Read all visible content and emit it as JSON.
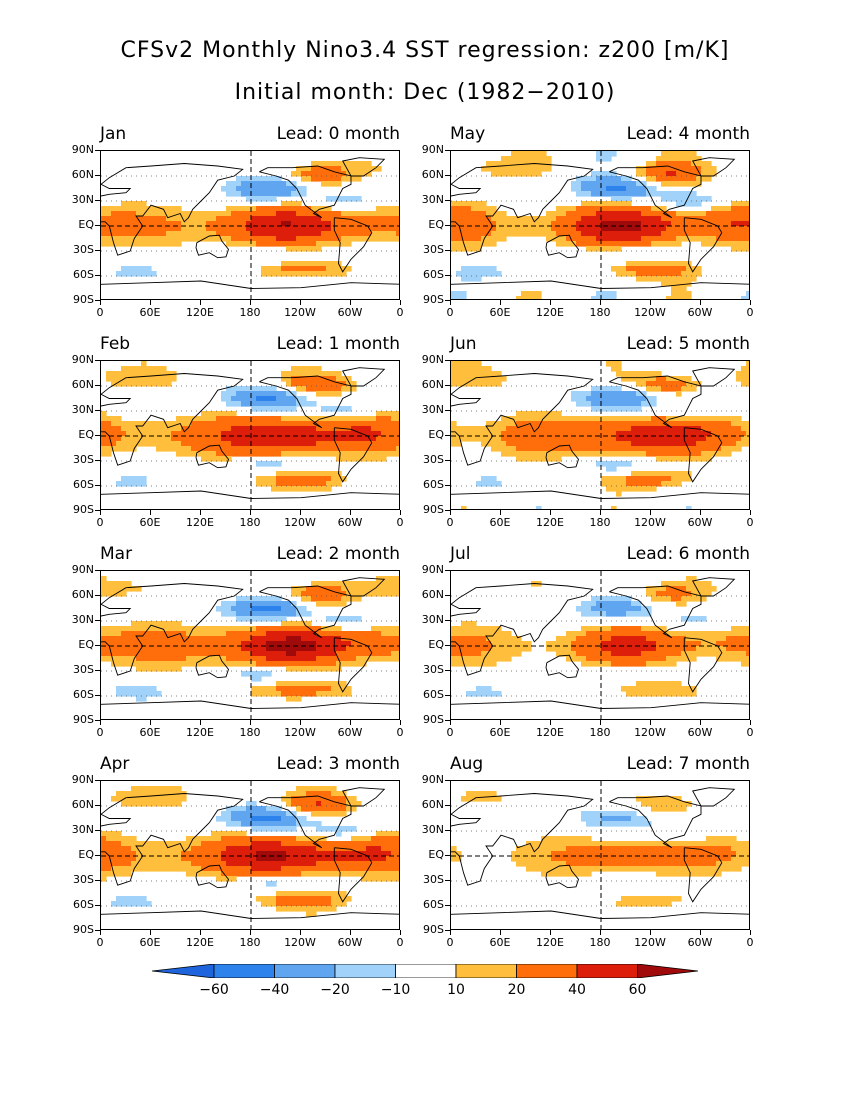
{
  "title_line1": "CFSv2 Monthly Nino3.4 SST regression: z200 [m/K]",
  "title_line2": "Initial month: Dec (1982−2010)",
  "y_ticks": [
    "90N",
    "60N",
    "30N",
    "EQ",
    "30S",
    "60S",
    "90S"
  ],
  "x_ticks": [
    "0",
    "60E",
    "120E",
    "180",
    "120W",
    "60W",
    "0"
  ],
  "colors": {
    "lt_-60": "#1E64DC",
    "-60_-40": "#2D82EB",
    "-40_-20": "#5FA5F0",
    "-20_-10": "#A0D2FA",
    "-10_10": "#FFFFFF",
    "10_20": "#FFBE3C",
    "20_40": "#FF6E0A",
    "40_60": "#DC1E0A",
    "gt_60": "#A00A0A"
  },
  "chart_data": [
    {
      "type": "heatmap",
      "month": "Jan",
      "lead": "Lead: 0 month",
      "pattern": "ensoTeleconnection",
      "strength": 0.85
    },
    {
      "type": "heatmap",
      "month": "May",
      "lead": "Lead: 4 month",
      "pattern": "ensoTeleconnection",
      "strength": 0.95
    },
    {
      "type": "heatmap",
      "month": "Feb",
      "lead": "Lead: 1 month",
      "pattern": "ensoTeleconnection",
      "strength": 0.95
    },
    {
      "type": "heatmap",
      "month": "Jun",
      "lead": "Lead: 5 month",
      "pattern": "ensoTeleconnection",
      "strength": 0.85
    },
    {
      "type": "heatmap",
      "month": "Mar",
      "lead": "Lead: 2 month",
      "pattern": "ensoTeleconnection",
      "strength": 1.0
    },
    {
      "type": "heatmap",
      "month": "Jul",
      "lead": "Lead: 6 month",
      "pattern": "ensoTeleconnection",
      "strength": 0.65
    },
    {
      "type": "heatmap",
      "month": "Apr",
      "lead": "Lead: 3 month",
      "pattern": "ensoTeleconnection",
      "strength": 1.0
    },
    {
      "type": "heatmap",
      "month": "Aug",
      "lead": "Lead: 7 month",
      "pattern": "ensoTeleconnection",
      "strength": 0.5
    }
  ],
  "colorbar": {
    "labels": [
      "−60",
      "−40",
      "−20",
      "−10",
      "10",
      "20",
      "40",
      "60"
    ],
    "levels": [
      -60,
      -40,
      -20,
      -10,
      10,
      20,
      40,
      60
    ]
  }
}
